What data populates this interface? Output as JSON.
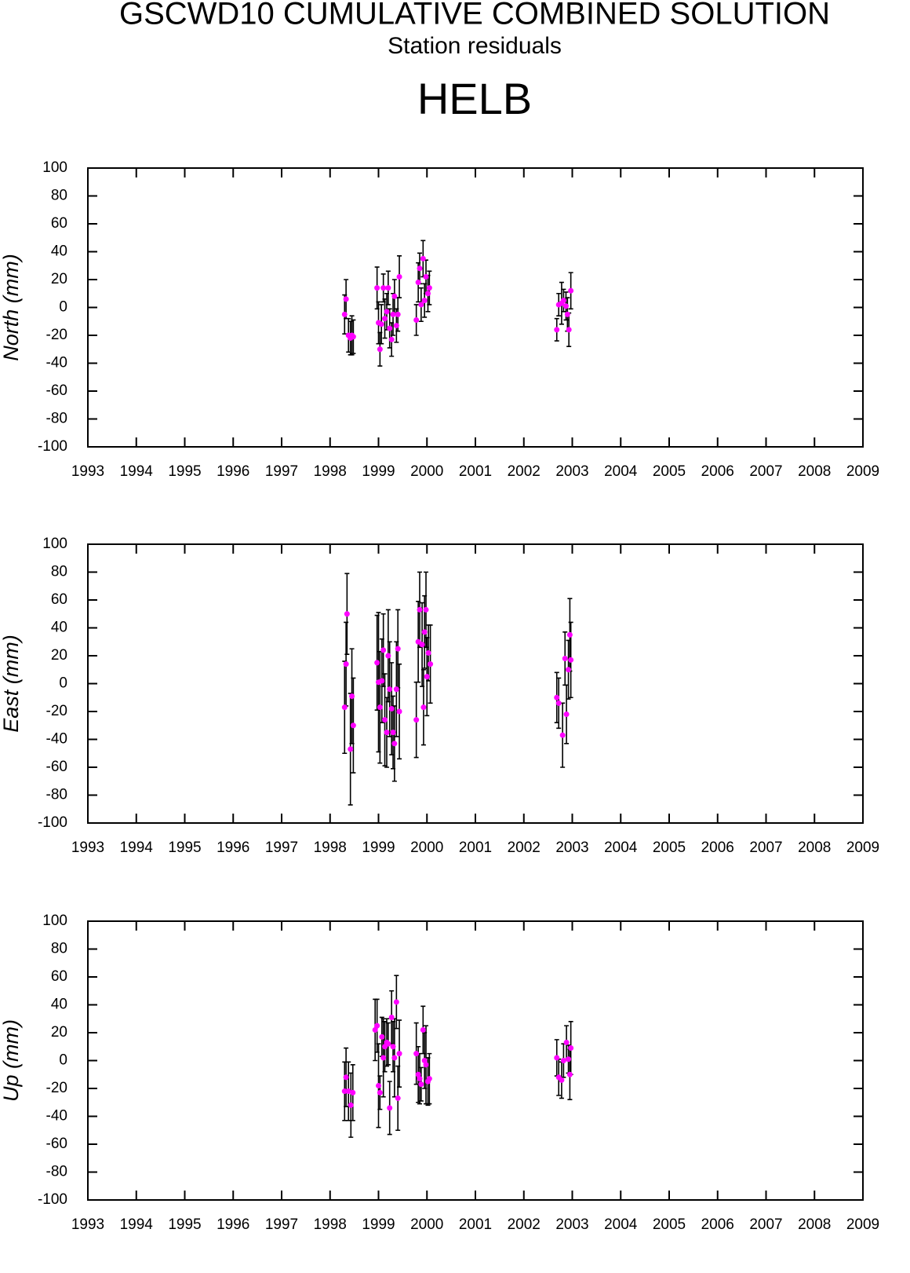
{
  "header": {
    "title": "GSCWD10 CUMULATIVE COMBINED SOLUTION",
    "subtitle": "Station residuals",
    "station": "HELB"
  },
  "chart_data": [
    {
      "type": "scatter",
      "ylabel": "North (mm)",
      "color": "#ff00ff",
      "x": [
        1998.3,
        1998.33,
        1998.38,
        1998.42,
        1998.45,
        1998.48,
        1998.97,
        1999.0,
        1999.03,
        1999.06,
        1999.1,
        1999.13,
        1999.17,
        1999.2,
        1999.23,
        1999.27,
        1999.3,
        1999.33,
        1999.37,
        1999.4,
        1999.43,
        1999.78,
        1999.82,
        1999.85,
        1999.88,
        1999.92,
        1999.95,
        1999.98,
        2000.02,
        2000.05,
        2002.68,
        2002.72,
        2002.78,
        2002.82,
        2002.87,
        2002.9,
        2002.93,
        2002.97
      ],
      "values": [
        -5,
        6,
        -20,
        -22,
        -20,
        -21,
        14,
        -11,
        -30,
        -12,
        14,
        -8,
        -3,
        14,
        -15,
        -23,
        -5,
        8,
        -13,
        -5,
        22,
        -9,
        18,
        28,
        2,
        35,
        5,
        22,
        10,
        14,
        -16,
        2,
        3,
        5,
        1,
        -5,
        -16,
        12
      ],
      "errors": [
        14,
        14,
        12,
        12,
        14,
        12,
        15,
        15,
        12,
        14,
        10,
        14,
        13,
        12,
        14,
        12,
        15,
        12,
        12,
        12,
        15,
        11,
        14,
        11,
        12,
        13,
        12,
        12,
        13,
        12,
        8,
        8,
        15,
        8,
        10,
        12,
        12,
        13
      ],
      "xlim": [
        1993,
        2009
      ],
      "xticks": [
        1993,
        1994,
        1995,
        1996,
        1997,
        1998,
        1999,
        2000,
        2001,
        2002,
        2003,
        2004,
        2005,
        2006,
        2007,
        2008,
        2009
      ],
      "ylim": [
        -100,
        100
      ],
      "yticks": [
        -100,
        -80,
        -60,
        -40,
        -20,
        0,
        20,
        40,
        60,
        80,
        100
      ]
    },
    {
      "type": "scatter",
      "ylabel": "East (mm)",
      "color": "#ff00ff",
      "x": [
        1998.3,
        1998.33,
        1998.35,
        1998.42,
        1998.45,
        1998.48,
        1998.97,
        1999.0,
        1999.03,
        1999.07,
        1999.1,
        1999.13,
        1999.17,
        1999.2,
        1999.23,
        1999.27,
        1999.3,
        1999.33,
        1999.37,
        1999.4,
        1999.43,
        1999.78,
        1999.82,
        1999.85,
        1999.9,
        1999.93,
        1999.95,
        1999.98,
        2000.0,
        2000.03,
        2000.07,
        2002.68,
        2002.72,
        2002.8,
        2002.85,
        2002.88,
        2002.92,
        2002.95,
        2002.97
      ],
      "values": [
        -17,
        14,
        50,
        -47,
        -9,
        -30,
        15,
        1,
        -17,
        2,
        24,
        -26,
        -35,
        20,
        -4,
        -18,
        -35,
        -43,
        -4,
        25,
        -20,
        -26,
        30,
        53,
        28,
        -17,
        37,
        53,
        5,
        22,
        14,
        -10,
        -14,
        -37,
        18,
        -22,
        10,
        35,
        17
      ],
      "errors": [
        33,
        30,
        29,
        40,
        34,
        34,
        34,
        50,
        40,
        30,
        26,
        33,
        25,
        33,
        34,
        33,
        26,
        27,
        34,
        28,
        34,
        27,
        29,
        27,
        30,
        27,
        26,
        27,
        28,
        20,
        28,
        18,
        18,
        23,
        19,
        21,
        21,
        26,
        27
      ],
      "xlim": [
        1993,
        2009
      ],
      "xticks": [
        1993,
        1994,
        1995,
        1996,
        1997,
        1998,
        1999,
        2000,
        2001,
        2002,
        2003,
        2004,
        2005,
        2006,
        2007,
        2008,
        2009
      ],
      "ylim": [
        -100,
        100
      ],
      "yticks": [
        -100,
        -80,
        -60,
        -40,
        -20,
        0,
        20,
        40,
        60,
        80,
        100
      ]
    },
    {
      "type": "scatter",
      "ylabel": "Up (mm)",
      "color": "#ff00ff",
      "x": [
        1998.3,
        1998.33,
        1998.38,
        1998.43,
        1998.47,
        1998.93,
        1998.97,
        1999.0,
        1999.03,
        1999.07,
        1999.1,
        1999.13,
        1999.17,
        1999.2,
        1999.23,
        1999.27,
        1999.3,
        1999.33,
        1999.37,
        1999.4,
        1999.43,
        1999.78,
        1999.82,
        1999.85,
        1999.88,
        1999.92,
        1999.95,
        1999.98,
        2000.02,
        2000.05,
        2002.68,
        2002.72,
        2002.78,
        2002.82,
        2002.88,
        2002.92,
        2002.95,
        2002.97
      ],
      "values": [
        -22,
        -12,
        -22,
        -32,
        -23,
        22,
        25,
        -18,
        -23,
        17,
        2,
        10,
        13,
        12,
        -34,
        31,
        10,
        2,
        42,
        -27,
        5,
        5,
        -10,
        -13,
        -17,
        22,
        0,
        -3,
        -15,
        -13,
        2,
        -12,
        -14,
        0,
        13,
        1,
        -10,
        9
      ],
      "errors": [
        21,
        21,
        21,
        23,
        20,
        22,
        19,
        30,
        12,
        14,
        28,
        18,
        17,
        15,
        19,
        19,
        18,
        28,
        19,
        23,
        24,
        22,
        20,
        18,
        12,
        17,
        20,
        28,
        17,
        18,
        13,
        13,
        13,
        12,
        12,
        10,
        18,
        19
      ],
      "xlim": [
        1993,
        2009
      ],
      "xticks": [
        1993,
        1994,
        1995,
        1996,
        1997,
        1998,
        1999,
        2000,
        2001,
        2002,
        2003,
        2004,
        2005,
        2006,
        2007,
        2008,
        2009
      ],
      "ylim": [
        -100,
        100
      ],
      "yticks": [
        -100,
        -80,
        -60,
        -40,
        -20,
        0,
        20,
        40,
        60,
        80,
        100
      ]
    }
  ]
}
